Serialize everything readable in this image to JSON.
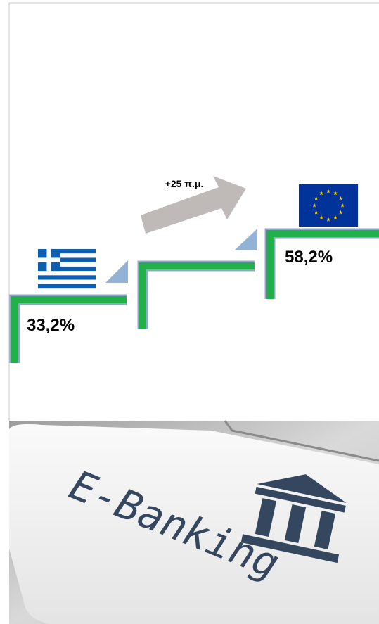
{
  "growth_label": "+25 π.μ.",
  "greece": {
    "value_label": "33,2%"
  },
  "eu": {
    "value_label": "58,2%"
  },
  "image": {
    "text": "E-Banking"
  }
}
